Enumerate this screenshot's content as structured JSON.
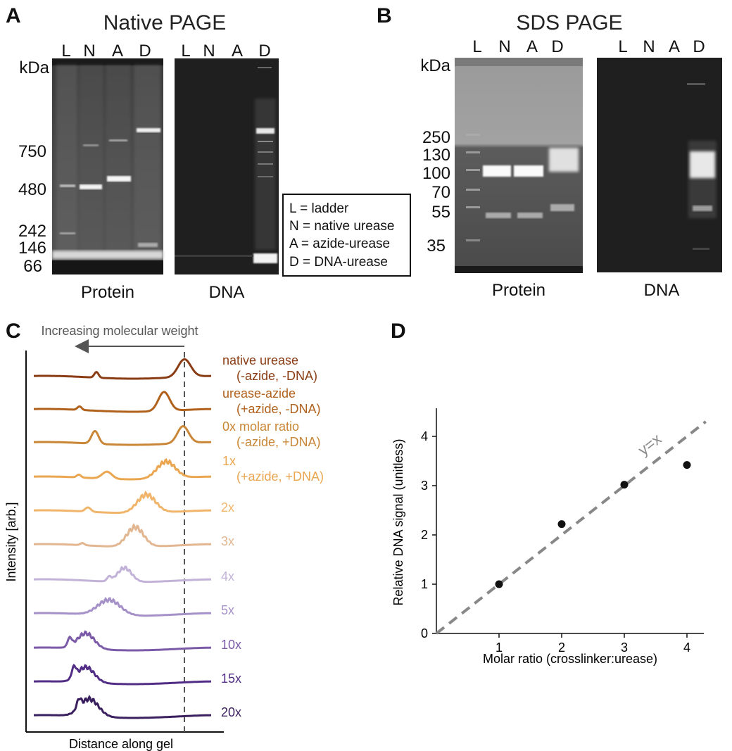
{
  "panels": {
    "A": {
      "letter": "A",
      "title": "Native PAGE",
      "kda_label": "kDa",
      "protein_lanes": [
        "L",
        "N",
        "A",
        "D"
      ],
      "dna_lanes": [
        "L",
        "N",
        "A",
        "D"
      ],
      "markers": [
        "750",
        "480",
        "242",
        "146",
        "66"
      ],
      "protein_caption": "Protein",
      "dna_caption": "DNA",
      "legend": [
        "L = ladder",
        "N = native urease",
        "A = azide-urease",
        "D = DNA-urease"
      ]
    },
    "B": {
      "letter": "B",
      "title": "SDS PAGE",
      "kda_label": "kDa",
      "protein_lanes": [
        "L",
        "N",
        "A",
        "D"
      ],
      "dna_lanes": [
        "L",
        "N",
        "A",
        "D"
      ],
      "markers": [
        "250",
        "130",
        "100",
        "70",
        "55",
        "35"
      ],
      "protein_caption": "Protein",
      "dna_caption": "DNA"
    },
    "C": {
      "letter": "C",
      "arrow_label": "Increasing molecular weight",
      "ylabel": "Intensity [arb.]",
      "xlabel": "Distance along gel",
      "traces": [
        {
          "label": [
            "native urease",
            "(-azide, -DNA)"
          ],
          "color": "#8a3d14"
        },
        {
          "label": [
            "urease-azide",
            "(+azide, -DNA)"
          ],
          "color": "#b0611c"
        },
        {
          "label": [
            "0x molar ratio",
            "(-azide, +DNA)"
          ],
          "color": "#c98636"
        },
        {
          "label": [
            "1x",
            "(+azide, +DNA)"
          ],
          "color": "#eaa650"
        },
        {
          "label": [
            "2x"
          ],
          "color": "#f0b56a"
        },
        {
          "label": [
            "3x"
          ],
          "color": "#e2b690"
        },
        {
          "label": [
            "4x"
          ],
          "color": "#c2b2d8"
        },
        {
          "label": [
            "5x"
          ],
          "color": "#a591c8"
        },
        {
          "label": [
            "10x"
          ],
          "color": "#7b5aa8"
        },
        {
          "label": [
            "15x"
          ],
          "color": "#522d86"
        },
        {
          "label": [
            "20x"
          ],
          "color": "#3a1f5e"
        }
      ]
    },
    "D": {
      "letter": "D",
      "xlabel": "Molar ratio (crosslinker:urease)",
      "ylabel": "Relative DNA signal (unitless)",
      "line_label": "y=x"
    }
  },
  "chart_data": {
    "type": "scatter",
    "x": [
      1,
      2,
      3,
      4
    ],
    "y": [
      1.0,
      2.22,
      3.02,
      3.42
    ],
    "reference_line": {
      "label": "y=x",
      "slope": 1,
      "intercept": 0,
      "style": "dashed",
      "color": "#888888"
    },
    "xlabel": "Molar ratio (crosslinker:urease)",
    "ylabel": "Relative DNA signal (unitless)",
    "xlim": [
      0,
      4.3
    ],
    "ylim": [
      0,
      4.5
    ],
    "xticks": [
      1,
      2,
      3,
      4
    ],
    "yticks": [
      0,
      1,
      2,
      3,
      4
    ],
    "grid": false,
    "point_color": "#111111"
  }
}
